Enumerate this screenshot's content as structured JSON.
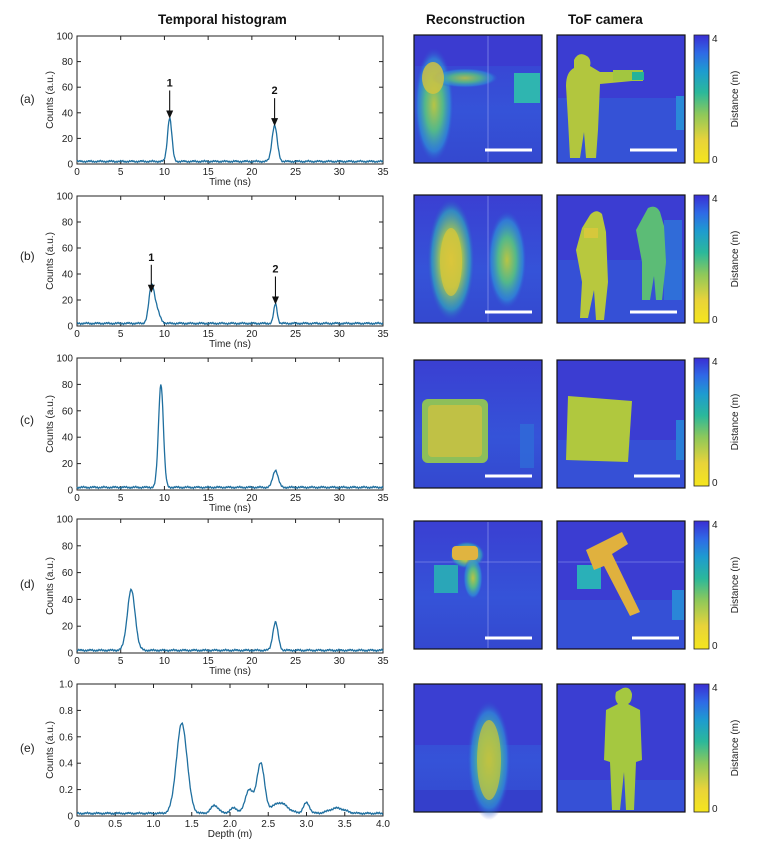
{
  "headers": {
    "histogram": "Temporal histogram",
    "reconstruction": "Reconstruction",
    "tof": "ToF camera"
  },
  "colorbar": {
    "label": "Distance (m)",
    "max_label": "4",
    "min_label": "0",
    "colors": [
      "#3a2ed3",
      "#2f6ae6",
      "#1e9bd0",
      "#2bb89a",
      "#8ec85a",
      "#e8d33a",
      "#f5e61d"
    ]
  },
  "chart_data": [
    {
      "type": "line",
      "panel_label": "(a)",
      "xlabel": "Time (ns)",
      "ylabel": "Counts (a.u.)",
      "xlim": [
        0,
        35
      ],
      "ylim": [
        0,
        100
      ],
      "xticks": [
        0,
        5,
        10,
        15,
        20,
        25,
        30,
        35
      ],
      "yticks": [
        0,
        20,
        40,
        60,
        80,
        100
      ],
      "color": "#1f6f9f",
      "baseline": 2,
      "peaks": [
        {
          "x": 10.6,
          "y": 34,
          "w": 0.25
        },
        {
          "x": 22.6,
          "y": 28,
          "w": 0.3
        }
      ],
      "points": [
        [
          0,
          2
        ],
        [
          0.8,
          3
        ],
        [
          1.2,
          2
        ],
        [
          10.2,
          3
        ],
        [
          10.6,
          34
        ],
        [
          11.1,
          3
        ],
        [
          22.1,
          4
        ],
        [
          22.6,
          28
        ],
        [
          23.3,
          4
        ],
        [
          35,
          2
        ]
      ],
      "annotations": [
        {
          "text": "1",
          "x": 10.6,
          "y": 34
        },
        {
          "text": "2",
          "x": 22.6,
          "y": 28
        }
      ]
    },
    {
      "type": "line",
      "panel_label": "(b)",
      "xlabel": "Time (ns)",
      "ylabel": "Counts (a.u.)",
      "xlim": [
        0,
        35
      ],
      "ylim": [
        0,
        100
      ],
      "xticks": [
        0,
        5,
        10,
        15,
        20,
        25,
        30,
        35
      ],
      "yticks": [
        0,
        20,
        40,
        60,
        80,
        100
      ],
      "color": "#1f6f9f",
      "baseline": 2,
      "peaks": [
        {
          "x": 8.5,
          "y": 24,
          "w": 0.3
        },
        {
          "x": 9.0,
          "y": 12,
          "w": 0.4
        },
        {
          "x": 22.7,
          "y": 15,
          "w": 0.2
        }
      ],
      "points": [
        [
          0,
          2
        ],
        [
          7.5,
          4
        ],
        [
          8.5,
          24
        ],
        [
          9.0,
          15
        ],
        [
          9.8,
          4
        ],
        [
          22.3,
          3
        ],
        [
          22.7,
          15
        ],
        [
          23.1,
          3
        ],
        [
          35,
          2
        ]
      ],
      "annotations": [
        {
          "text": "1",
          "x": 8.5,
          "y": 24
        },
        {
          "text": "2",
          "x": 22.7,
          "y": 15
        }
      ]
    },
    {
      "type": "line",
      "panel_label": "(c)",
      "xlabel": "Time (ns)",
      "ylabel": "Counts (a.u.)",
      "xlim": [
        0,
        35
      ],
      "ylim": [
        0,
        100
      ],
      "xticks": [
        0,
        5,
        10,
        15,
        20,
        25,
        30,
        35
      ],
      "yticks": [
        0,
        20,
        40,
        60,
        80,
        100
      ],
      "color": "#1f6f9f",
      "baseline": 2,
      "peaks": [
        {
          "x": 9.6,
          "y": 78,
          "w": 0.28
        },
        {
          "x": 22.7,
          "y": 13,
          "w": 0.3
        }
      ],
      "points": [
        [
          0,
          2
        ],
        [
          9.0,
          3
        ],
        [
          9.6,
          78
        ],
        [
          10.4,
          4
        ],
        [
          22.2,
          3
        ],
        [
          22.7,
          13
        ],
        [
          23.3,
          3
        ],
        [
          35,
          2
        ]
      ],
      "annotations": []
    },
    {
      "type": "line",
      "panel_label": "(d)",
      "xlabel": "Time (ns)",
      "ylabel": "Counts (a.u.)",
      "xlim": [
        0,
        35
      ],
      "ylim": [
        0,
        100
      ],
      "xticks": [
        0,
        5,
        10,
        15,
        20,
        25,
        30,
        35
      ],
      "yticks": [
        0,
        20,
        40,
        60,
        80,
        100
      ],
      "color": "#1f6f9f",
      "baseline": 2,
      "peaks": [
        {
          "x": 6.2,
          "y": 45,
          "w": 0.45
        },
        {
          "x": 22.7,
          "y": 21,
          "w": 0.3
        }
      ],
      "points": [
        [
          0,
          2
        ],
        [
          5.2,
          3
        ],
        [
          6.2,
          45
        ],
        [
          7.2,
          3
        ],
        [
          22.2,
          3
        ],
        [
          22.7,
          21
        ],
        [
          23.3,
          3
        ],
        [
          35,
          2
        ]
      ],
      "annotations": []
    },
    {
      "type": "line",
      "panel_label": "(e)",
      "xlabel": "Depth (m)",
      "ylabel": "Counts (a.u.)",
      "xlim": [
        0,
        4
      ],
      "ylim": [
        0,
        1
      ],
      "xticks": [
        0,
        0.5,
        1.0,
        1.5,
        2.0,
        2.5,
        3.0,
        3.5,
        4.0
      ],
      "xticklabels": [
        "0",
        "0.5",
        "1.0",
        "1.5",
        "2.0",
        "2.5",
        "3.0",
        "3.5",
        "4.0"
      ],
      "yticks": [
        0,
        0.2,
        0.4,
        0.6,
        0.8,
        1.0
      ],
      "yticklabels": [
        "0",
        "0.2",
        "0.4",
        "0.6",
        "0.8",
        "1.0"
      ],
      "color": "#1f6f9f",
      "baseline": 0.02,
      "peaks": [
        {
          "x": 1.37,
          "y": 0.68,
          "w": 0.07
        },
        {
          "x": 1.8,
          "y": 0.06,
          "w": 0.05
        },
        {
          "x": 2.05,
          "y": 0.04,
          "w": 0.05
        },
        {
          "x": 2.25,
          "y": 0.18,
          "w": 0.05
        },
        {
          "x": 2.4,
          "y": 0.38,
          "w": 0.05
        },
        {
          "x": 2.65,
          "y": 0.08,
          "w": 0.1
        },
        {
          "x": 3.0,
          "y": 0.08,
          "w": 0.04
        },
        {
          "x": 3.4,
          "y": 0.04,
          "w": 0.1
        }
      ],
      "points": [
        [
          0,
          0.02
        ],
        [
          1.0,
          0.02
        ],
        [
          1.37,
          0.7
        ],
        [
          1.6,
          0.04
        ],
        [
          1.8,
          0.08
        ],
        [
          2.25,
          0.2
        ],
        [
          2.4,
          0.4
        ],
        [
          2.6,
          0.1
        ],
        [
          3.0,
          0.1
        ],
        [
          3.9,
          0.03
        ]
      ],
      "annotations": []
    }
  ]
}
